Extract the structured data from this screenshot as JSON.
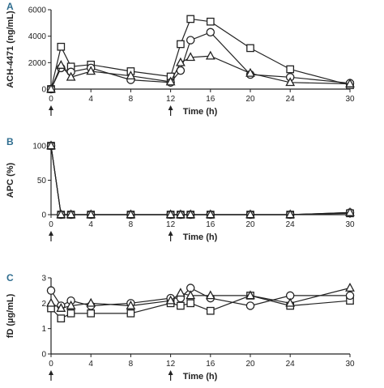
{
  "chart_data": [
    {
      "type": "line",
      "panel_label": "A",
      "xlabel": "Time (h)",
      "ylabel": "ACH-4471 (ng/mL)",
      "xlim": [
        0,
        30
      ],
      "ylim": [
        0,
        6000
      ],
      "x_ticks": [
        "0",
        "4",
        "8",
        "12",
        "16",
        "20",
        "24",
        "30"
      ],
      "y_ticks": [
        "0",
        "2000",
        "4000",
        "6000"
      ],
      "dose_arrows_at": [
        0,
        12
      ],
      "series": [
        {
          "marker": "square",
          "points": [
            [
              0,
              0
            ],
            [
              1,
              3200
            ],
            [
              2,
              1700
            ],
            [
              4,
              1850
            ],
            [
              8,
              1350
            ],
            [
              12,
              950
            ],
            [
              13,
              3400
            ],
            [
              14,
              5300
            ],
            [
              16,
              5100
            ],
            [
              20,
              3100
            ],
            [
              24,
              1500
            ],
            [
              30,
              300
            ]
          ]
        },
        {
          "marker": "circle",
          "points": [
            [
              0,
              0
            ],
            [
              1,
              1600
            ],
            [
              2,
              1300
            ],
            [
              4,
              1600
            ],
            [
              8,
              700
            ],
            [
              12,
              500
            ],
            [
              13,
              1400
            ],
            [
              14,
              3700
            ],
            [
              16,
              4300
            ],
            [
              20,
              1100
            ],
            [
              24,
              900
            ],
            [
              30,
              450
            ]
          ]
        },
        {
          "marker": "triangle",
          "points": [
            [
              0,
              0
            ],
            [
              1,
              1800
            ],
            [
              2,
              900
            ],
            [
              4,
              1350
            ],
            [
              8,
              1000
            ],
            [
              12,
              550
            ],
            [
              13,
              2000
            ],
            [
              14,
              2400
            ],
            [
              16,
              2500
            ],
            [
              20,
              1200
            ],
            [
              24,
              500
            ],
            [
              30,
              400
            ]
          ]
        }
      ]
    },
    {
      "type": "line",
      "panel_label": "B",
      "xlabel": "Time (h)",
      "ylabel": "APC (%)",
      "xlim": [
        0,
        30
      ],
      "ylim": [
        0,
        100
      ],
      "x_ticks": [
        "0",
        "4",
        "8",
        "12",
        "16",
        "20",
        "24",
        "30"
      ],
      "y_ticks": [
        "0",
        "50",
        "100"
      ],
      "dose_arrows_at": [
        0,
        12
      ],
      "series": [
        {
          "marker": "square",
          "points": [
            [
              0,
              100
            ],
            [
              1,
              0
            ],
            [
              2,
              0
            ],
            [
              4,
              0
            ],
            [
              8,
              0
            ],
            [
              12,
              0
            ],
            [
              13,
              0
            ],
            [
              14,
              0
            ],
            [
              16,
              0
            ],
            [
              20,
              0
            ],
            [
              24,
              0
            ],
            [
              30,
              2
            ]
          ]
        },
        {
          "marker": "circle",
          "points": [
            [
              0,
              100
            ],
            [
              1,
              0
            ],
            [
              2,
              0
            ],
            [
              4,
              0
            ],
            [
              8,
              0
            ],
            [
              12,
              0
            ],
            [
              13,
              0
            ],
            [
              14,
              0
            ],
            [
              16,
              0
            ],
            [
              20,
              0
            ],
            [
              24,
              0
            ],
            [
              30,
              3
            ]
          ]
        },
        {
          "marker": "triangle",
          "points": [
            [
              0,
              100
            ],
            [
              1,
              0
            ],
            [
              2,
              0
            ],
            [
              4,
              0
            ],
            [
              8,
              0
            ],
            [
              12,
              0
            ],
            [
              13,
              0
            ],
            [
              14,
              0
            ],
            [
              16,
              0
            ],
            [
              20,
              0
            ],
            [
              24,
              0
            ],
            [
              30,
              3
            ]
          ]
        }
      ]
    },
    {
      "type": "line",
      "panel_label": "C",
      "xlabel": "Time (h)",
      "ylabel": "fD (µg/mL)",
      "xlim": [
        0,
        30
      ],
      "ylim": [
        0,
        3
      ],
      "x_ticks": [
        "0",
        "4",
        "8",
        "12",
        "16",
        "20",
        "24",
        "30"
      ],
      "y_ticks": [
        "0",
        "1",
        "2",
        "3"
      ],
      "dose_arrows_at": [
        0,
        12
      ],
      "series": [
        {
          "marker": "square",
          "points": [
            [
              0,
              1.8
            ],
            [
              1,
              1.4
            ],
            [
              2,
              1.6
            ],
            [
              4,
              1.6
            ],
            [
              8,
              1.6
            ],
            [
              12,
              2.0
            ],
            [
              13,
              1.9
            ],
            [
              14,
              2.0
            ],
            [
              16,
              1.7
            ],
            [
              20,
              2.3
            ],
            [
              24,
              1.9
            ],
            [
              30,
              2.1
            ]
          ]
        },
        {
          "marker": "circle",
          "points": [
            [
              0,
              2.5
            ],
            [
              1,
              1.9
            ],
            [
              2,
              2.1
            ],
            [
              4,
              1.9
            ],
            [
              8,
              2.0
            ],
            [
              12,
              2.2
            ],
            [
              13,
              2.2
            ],
            [
              14,
              2.6
            ],
            [
              16,
              2.2
            ],
            [
              20,
              1.9
            ],
            [
              24,
              2.3
            ],
            [
              30,
              2.3
            ]
          ]
        },
        {
          "marker": "triangle",
          "points": [
            [
              0,
              2.0
            ],
            [
              1,
              1.8
            ],
            [
              2,
              1.9
            ],
            [
              4,
              2.0
            ],
            [
              8,
              1.9
            ],
            [
              12,
              2.1
            ],
            [
              13,
              2.4
            ],
            [
              14,
              2.3
            ],
            [
              16,
              2.3
            ],
            [
              20,
              2.3
            ],
            [
              24,
              2.0
            ],
            [
              30,
              2.6
            ]
          ]
        }
      ]
    }
  ]
}
